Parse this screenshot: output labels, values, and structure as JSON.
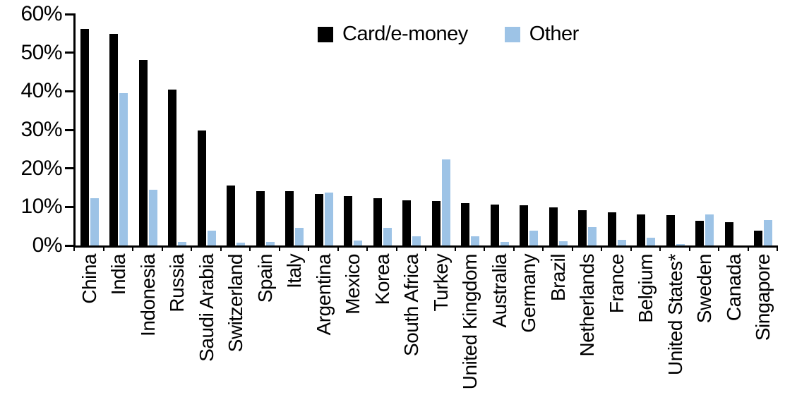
{
  "chart_data": {
    "type": "bar",
    "title": "",
    "xlabel": "",
    "ylabel": "",
    "categories": [
      "China",
      "India",
      "Indonesia",
      "Russia",
      "Saudi Arabia",
      "Switzerland",
      "Spain",
      "Italy",
      "Argentina",
      "Mexico",
      "Korea",
      "South Africa",
      "Turkey",
      "United Kingdom",
      "Australia",
      "Germany",
      "Brazil",
      "Netherlands",
      "France",
      "Belgium",
      "United States*",
      "Sweden",
      "Canada",
      "Singapore"
    ],
    "series": [
      {
        "name": "Card/e-money",
        "color": "#000000",
        "values": [
          56.1,
          54.9,
          48.2,
          40.4,
          29.8,
          15.6,
          14.1,
          14.1,
          13.4,
          12.9,
          12.2,
          11.7,
          11.6,
          11.0,
          10.7,
          10.5,
          9.9,
          9.2,
          8.6,
          8.1,
          7.8,
          6.5,
          6.0,
          3.9
        ]
      },
      {
        "name": "Other",
        "color": "#9DC3E6",
        "values": [
          12.3,
          39.6,
          14.4,
          1.0,
          3.9,
          0.8,
          1.0,
          4.5,
          13.8,
          1.2,
          4.5,
          2.3,
          22.4,
          2.3,
          1.0,
          3.9,
          1.1,
          4.8,
          1.5,
          2.0,
          0.4,
          8.0,
          0.0,
          6.6
        ]
      }
    ],
    "y_axis": {
      "min": 0,
      "max": 60,
      "tick_step": 10,
      "tick_labels": [
        "0%",
        "10%",
        "20%",
        "30%",
        "40%",
        "50%",
        "60%"
      ],
      "format": "percent"
    },
    "legend_position": "top-center",
    "grid": false
  }
}
